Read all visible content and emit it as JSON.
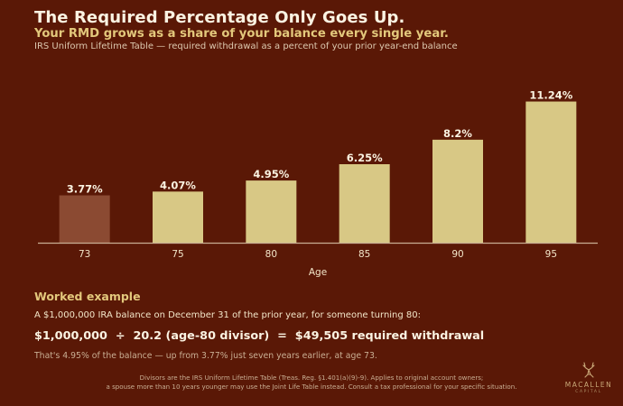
{
  "header": {
    "title": "The Required Percentage Only Goes Up.",
    "subtitle": "Your RMD grows as a share of your balance every single year.",
    "description": "IRS Uniform Lifetime Table — required withdrawal as a percent of your prior year-end balance"
  },
  "chart_data": {
    "type": "bar",
    "title": "",
    "xlabel": "Age",
    "ylabel": "",
    "categories": [
      "73",
      "75",
      "80",
      "85",
      "90",
      "95"
    ],
    "values": [
      3.77,
      4.07,
      4.95,
      6.25,
      8.2,
      11.24
    ],
    "data_labels": [
      "3.77%",
      "4.07%",
      "4.95%",
      "6.25%",
      "8.2%",
      "11.24%"
    ],
    "ylim": [
      0,
      12.5
    ],
    "grid": false,
    "colors": {
      "highlight": "#8b4a32",
      "bar": "#d8c885",
      "axis": "#c9ae93",
      "label": "#fbf3e2",
      "tick": "#f3e6c9"
    },
    "highlight_index": 0
  },
  "example": {
    "heading": "Worked example",
    "intro": "A $1,000,000 IRA balance on December 31 of the prior year, for someone turning 80:",
    "formula": "$1,000,000  ÷  20.2 (age-80 divisor)  =  $49,505 required withdrawal",
    "note": "That's 4.95% of the balance — up from 3.77% just seven years earlier, at age 73."
  },
  "footnote": {
    "line1": "Divisors are the IRS Uniform Lifetime Table (Treas. Reg. §1.401(a)(9)-9). Applies to original account owners;",
    "line2": "a spouse more than 10 years younger may use the Joint Life Table instead. Consult a tax professional for your specific situation."
  },
  "logo": {
    "name": "MACALLEN",
    "sub": "CAPITAL",
    "icon": "stag-icon"
  }
}
